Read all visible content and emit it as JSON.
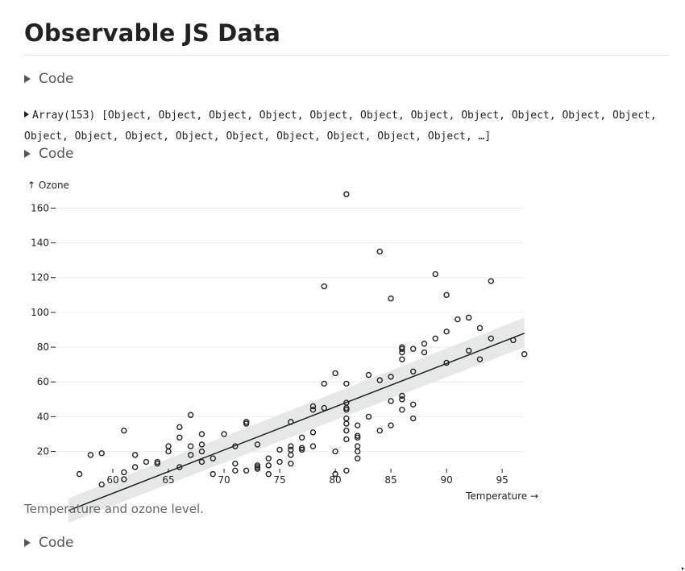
{
  "page": {
    "title": "Observable JS Data",
    "code_toggle_label": "Code",
    "array_preview": "Array(153) [Object, Object, Object, Object, Object, Object, Object, Object, Object, Object, Object, Object, Object, Object, Object, Object, Object, Object, Object, Object, …]",
    "caption": "Temperature and ozone level."
  },
  "chart_data": {
    "type": "scatter",
    "title": "",
    "xlabel": "Temperature →",
    "ylabel": "↑ Ozone",
    "xlim": [
      56,
      97
    ],
    "ylim": [
      -8,
      170
    ],
    "xticks": [
      60,
      65,
      70,
      75,
      80,
      85,
      90,
      95
    ],
    "yticks": [
      20,
      40,
      60,
      80,
      100,
      120,
      140,
      160
    ],
    "grid": "horizontal",
    "regression": {
      "line": [
        [
          56,
          -14
        ],
        [
          97,
          88
        ]
      ],
      "band_low": [
        [
          56,
          -21
        ],
        [
          97,
          80
        ]
      ],
      "band_high": [
        [
          56,
          -7
        ],
        [
          97,
          97
        ]
      ]
    },
    "colors": {
      "point_stroke": "#222222",
      "band": "#e6e7e7",
      "grid": "#ececec",
      "line": "#222222"
    },
    "points": [
      [
        57,
        7
      ],
      [
        58,
        18
      ],
      [
        59,
        1
      ],
      [
        59,
        19
      ],
      [
        61,
        4
      ],
      [
        61,
        8
      ],
      [
        61,
        32
      ],
      [
        62,
        11
      ],
      [
        62,
        18
      ],
      [
        63,
        14
      ],
      [
        64,
        13
      ],
      [
        64,
        14
      ],
      [
        65,
        20
      ],
      [
        65,
        23
      ],
      [
        66,
        11
      ],
      [
        66,
        28
      ],
      [
        66,
        34
      ],
      [
        67,
        18
      ],
      [
        67,
        23
      ],
      [
        67,
        41
      ],
      [
        68,
        14
      ],
      [
        68,
        20
      ],
      [
        68,
        24
      ],
      [
        68,
        30
      ],
      [
        69,
        7
      ],
      [
        69,
        16
      ],
      [
        70,
        30
      ],
      [
        71,
        9
      ],
      [
        71,
        13
      ],
      [
        71,
        23
      ],
      [
        72,
        9
      ],
      [
        72,
        36
      ],
      [
        72,
        37
      ],
      [
        73,
        10
      ],
      [
        73,
        11
      ],
      [
        73,
        12
      ],
      [
        73,
        24
      ],
      [
        74,
        7
      ],
      [
        74,
        12
      ],
      [
        74,
        16
      ],
      [
        75,
        14
      ],
      [
        75,
        21
      ],
      [
        76,
        13
      ],
      [
        76,
        18
      ],
      [
        76,
        21
      ],
      [
        76,
        23
      ],
      [
        76,
        37
      ],
      [
        77,
        21
      ],
      [
        77,
        22
      ],
      [
        77,
        28
      ],
      [
        78,
        23
      ],
      [
        78,
        31
      ],
      [
        78,
        44
      ],
      [
        78,
        46
      ],
      [
        79,
        45
      ],
      [
        79,
        59
      ],
      [
        79,
        115
      ],
      [
        80,
        7
      ],
      [
        80,
        20
      ],
      [
        80,
        65
      ],
      [
        81,
        9
      ],
      [
        81,
        27
      ],
      [
        81,
        32
      ],
      [
        81,
        36
      ],
      [
        81,
        39
      ],
      [
        81,
        44
      ],
      [
        81,
        45
      ],
      [
        81,
        48
      ],
      [
        81,
        59
      ],
      [
        81,
        168
      ],
      [
        82,
        16
      ],
      [
        82,
        20
      ],
      [
        82,
        23
      ],
      [
        82,
        28
      ],
      [
        82,
        29
      ],
      [
        82,
        35
      ],
      [
        83,
        40
      ],
      [
        83,
        64
      ],
      [
        84,
        32
      ],
      [
        84,
        61
      ],
      [
        84,
        135
      ],
      [
        85,
        35
      ],
      [
        85,
        49
      ],
      [
        85,
        63
      ],
      [
        85,
        108
      ],
      [
        86,
        44
      ],
      [
        86,
        50
      ],
      [
        86,
        52
      ],
      [
        86,
        73
      ],
      [
        86,
        77
      ],
      [
        86,
        79
      ],
      [
        86,
        80
      ],
      [
        87,
        39
      ],
      [
        87,
        47
      ],
      [
        87,
        66
      ],
      [
        87,
        79
      ],
      [
        88,
        77
      ],
      [
        88,
        82
      ],
      [
        89,
        85
      ],
      [
        89,
        122
      ],
      [
        90,
        71
      ],
      [
        90,
        89
      ],
      [
        90,
        110
      ],
      [
        91,
        96
      ],
      [
        92,
        78
      ],
      [
        92,
        97
      ],
      [
        93,
        73
      ],
      [
        93,
        91
      ],
      [
        94,
        85
      ],
      [
        94,
        118
      ],
      [
        96,
        84
      ],
      [
        97,
        76
      ]
    ]
  }
}
